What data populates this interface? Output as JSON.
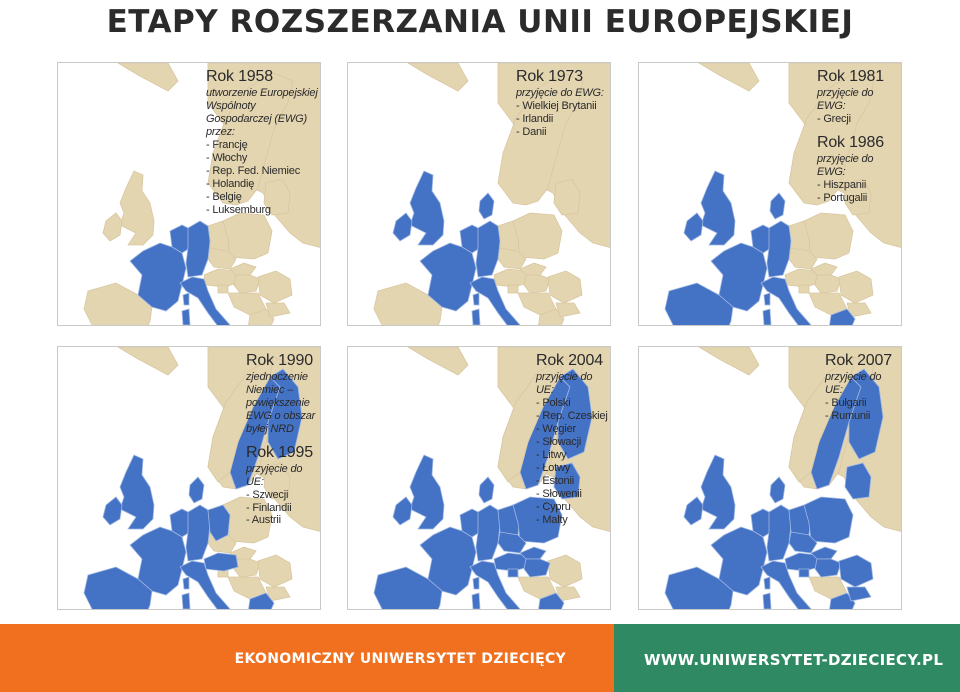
{
  "title": "ETAPY ROZSZERZANIA UNII EUROPEJSKIEJ",
  "colors": {
    "land": "#e4d5b1",
    "member": "#4472c4",
    "sea": "#ffffff",
    "orange": "#f07020",
    "green": "#2f8a63"
  },
  "panels": [
    {
      "blocks": [
        {
          "year": "Rok 1958",
          "desc": "utworzenie Europejskiej Wspólnoty Gospodarczej (EWG) przez:",
          "items": [
            "- Francję",
            "- Włochy",
            "- Rep. Fed. Niemiec",
            "- Holandię",
            "- Belgię",
            "- Luksemburg"
          ]
        }
      ]
    },
    {
      "blocks": [
        {
          "year": "Rok 1973",
          "desc": "przyjęcie do EWG:",
          "items": [
            "- Wielkiej Brytanii",
            "- Irlandii",
            "- Danii"
          ]
        }
      ]
    },
    {
      "blocks": [
        {
          "year": "Rok 1981",
          "desc": "przyjęcie do EWG:",
          "items": [
            "- Grecji"
          ]
        },
        {
          "year": "Rok 1986",
          "desc": "przyjęcie do EWG:",
          "items": [
            "- Hiszpanii",
            "- Portugalii"
          ]
        }
      ]
    },
    {
      "blocks": [
        {
          "year": "Rok 1990",
          "desc": "zjednoczenie Niemiec – powiększenie EWG o obszar byłej NRD",
          "items": []
        },
        {
          "year": "Rok 1995",
          "desc": "przyjęcie do UE:",
          "items": [
            "- Szwecji",
            "- Finlandii",
            "- Austrii"
          ]
        }
      ]
    },
    {
      "blocks": [
        {
          "year": "Rok 2004",
          "desc": "przyjęcie do UE:",
          "items": [
            "- Polski",
            "- Rep. Czeskiej",
            "- Węgier",
            "- Słowacji",
            "- Litwy",
            "- Łotwy",
            "- Estonii",
            "- Słowenii",
            "- Cypru",
            "- Malty"
          ]
        }
      ]
    },
    {
      "blocks": [
        {
          "year": "Rok 2007",
          "desc": "przyjęcie do UE:",
          "items": [
            "- Bułgarii",
            "- Rumunii"
          ]
        }
      ]
    }
  ],
  "footer": {
    "left": "EKONOMICZNY UNIWERSYTET DZIECIĘCY",
    "right": "WWW.UNIWERSYTET-DZIECIECY.PL"
  }
}
